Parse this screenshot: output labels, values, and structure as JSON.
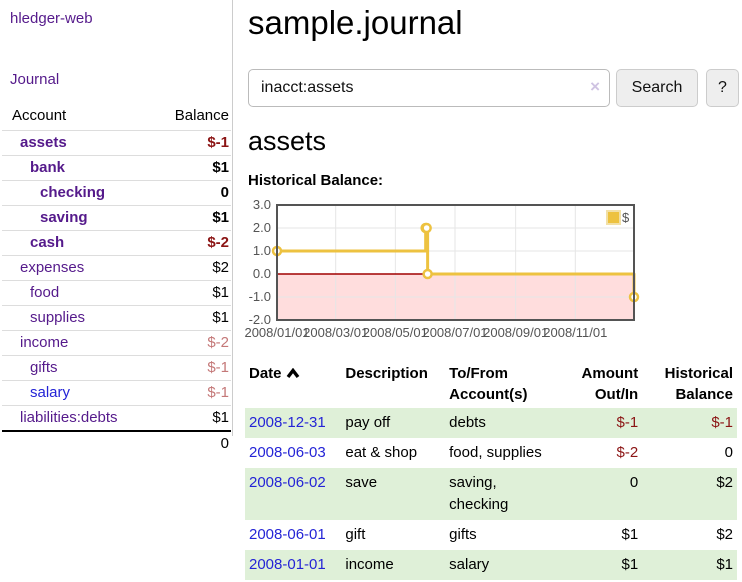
{
  "app": {
    "brand": "hledger-web"
  },
  "nav": {
    "journal": "Journal"
  },
  "sidebar": {
    "header": {
      "account": "Account",
      "balance": "Balance"
    },
    "accounts": [
      {
        "name": "assets",
        "indent": 1,
        "bold": true,
        "balance": "$-1",
        "balance_style": "neg-strong"
      },
      {
        "name": "bank",
        "indent": 2,
        "bold": true,
        "balance": "$1",
        "balance_style": ""
      },
      {
        "name": "checking",
        "indent": 3,
        "bold": true,
        "balance": "0",
        "balance_style": ""
      },
      {
        "name": "saving",
        "indent": 3,
        "bold": true,
        "balance": "$1",
        "balance_style": ""
      },
      {
        "name": "cash",
        "indent": 2,
        "bold": true,
        "balance": "$-2",
        "balance_style": "neg-strong"
      },
      {
        "name": "expenses",
        "indent": 1,
        "bold": false,
        "balance": "$2",
        "balance_style": ""
      },
      {
        "name": "food",
        "indent": 2,
        "bold": false,
        "balance": "$1",
        "balance_style": ""
      },
      {
        "name": "supplies",
        "indent": 2,
        "bold": false,
        "balance": "$1",
        "balance_style": ""
      },
      {
        "name": "income",
        "indent": 1,
        "bold": false,
        "balance": "$-2",
        "balance_style": "neg"
      },
      {
        "name": "gifts",
        "indent": 2,
        "bold": false,
        "balance": "$-1",
        "balance_style": "neg"
      },
      {
        "name": "salary",
        "indent": 2,
        "bold": false,
        "link_color": "blue",
        "balance": "$-1",
        "balance_style": "neg"
      },
      {
        "name": "liabilities:debts",
        "indent": 1,
        "bold": false,
        "balance": "$1",
        "balance_style": ""
      }
    ],
    "total": "0"
  },
  "header": {
    "title": "sample.journal"
  },
  "search": {
    "value": "inacct:assets",
    "clear_icon": "×",
    "button_label": "Search",
    "help_label": "?"
  },
  "main": {
    "account_title": "assets",
    "chart_label": "Historical Balance:"
  },
  "chart_data": {
    "type": "line",
    "step": true,
    "title": "Historical Balance",
    "series": [
      {
        "name": "$",
        "color": "#edc240",
        "points": [
          [
            "2008-01-01",
            1
          ],
          [
            "2008-06-01",
            2
          ],
          [
            "2008-06-02",
            2
          ],
          [
            "2008-06-03",
            0
          ],
          [
            "2008-12-31",
            -1
          ]
        ]
      }
    ],
    "xrange": [
      "2008-01-01",
      "2008-12-31"
    ],
    "ylim": [
      -2,
      3
    ],
    "yticks": [
      3,
      2,
      1,
      0,
      -1,
      -2
    ],
    "ytick_labels": [
      "3.0",
      "2.0",
      "1.0",
      "0.0",
      "-1.0",
      "-2.0"
    ],
    "xtick_labels": [
      "2008/01/01",
      "2008/03/01",
      "2008/05/01",
      "2008/07/01",
      "2008/09/01",
      "2008/11/01"
    ],
    "grid": true,
    "legend": {
      "label": "$",
      "position": "top-right"
    },
    "negative_region_color": "#ffdddd",
    "zero_line_color": "#a00000",
    "grid_color": "#e6e6e6",
    "axis_text_color": "#545454",
    "border_color": "#545454",
    "marker_fill": "#ffffff"
  },
  "register": {
    "headers": {
      "date": "Date",
      "description": "Description",
      "tofrom1": "To/From",
      "tofrom2": "Account(s)",
      "amount1": "Amount",
      "amount2": "Out/In",
      "balance1": "Historical",
      "balance2": "Balance"
    },
    "sort": {
      "column": "date",
      "direction": "ascending"
    },
    "rows": [
      {
        "date": "2008-12-31",
        "description": "pay off",
        "accounts_lines": [
          "debts"
        ],
        "amount": "$-1",
        "amount_negative": true,
        "balance": "$-1",
        "balance_negative": true,
        "shaded": true
      },
      {
        "date": "2008-06-03",
        "description": "eat & shop",
        "accounts_lines": [
          "food, supplies"
        ],
        "amount": "$-2",
        "amount_negative": true,
        "balance": "0",
        "balance_negative": false,
        "shaded": false
      },
      {
        "date": "2008-06-02",
        "description": "save",
        "accounts_lines": [
          "saving,",
          "checking"
        ],
        "amount": "0",
        "amount_negative": false,
        "balance": "$2",
        "balance_negative": false,
        "shaded": true
      },
      {
        "date": "2008-06-01",
        "description": "gift",
        "accounts_lines": [
          "gifts"
        ],
        "amount": "$1",
        "amount_negative": false,
        "balance": "$2",
        "balance_negative": false,
        "shaded": false
      },
      {
        "date": "2008-01-01",
        "description": "income",
        "accounts_lines": [
          "salary"
        ],
        "amount": "$1",
        "amount_negative": false,
        "balance": "$1",
        "balance_negative": false,
        "shaded": true
      }
    ]
  }
}
